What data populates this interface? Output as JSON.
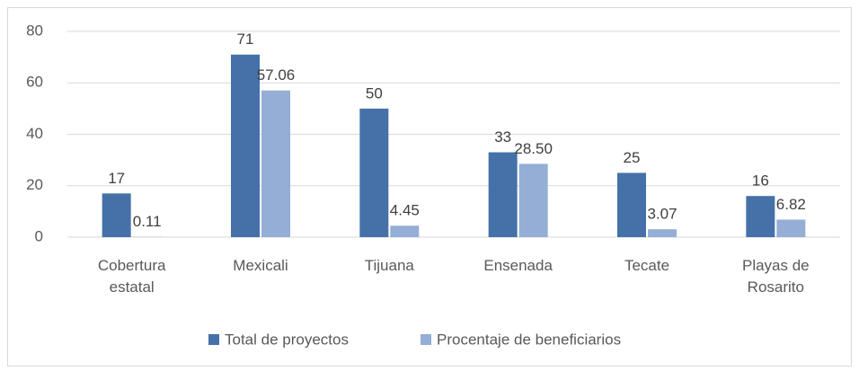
{
  "chart_data": {
    "type": "bar",
    "categories": [
      "Cobertura estatal",
      "Mexicali",
      "Tijuana",
      "Ensenada",
      "Tecate",
      "Playas de Rosarito"
    ],
    "series": [
      {
        "name": "Total de proyectos",
        "color": "#4571a8",
        "values": [
          17,
          71,
          50,
          33,
          25,
          16
        ]
      },
      {
        "name": "Procentaje de beneficiarios",
        "color": "#95aed6",
        "values": [
          0.11,
          57.06,
          4.45,
          28.5,
          3.07,
          6.82
        ],
        "value_labels": [
          "0.11",
          "57.06",
          "4.45",
          "28.50",
          "3.07",
          "6.82"
        ]
      }
    ],
    "ylim": [
      0,
      80
    ],
    "yticks": [
      0,
      20,
      40,
      60,
      80
    ],
    "grid": true,
    "legend": "bottom"
  }
}
